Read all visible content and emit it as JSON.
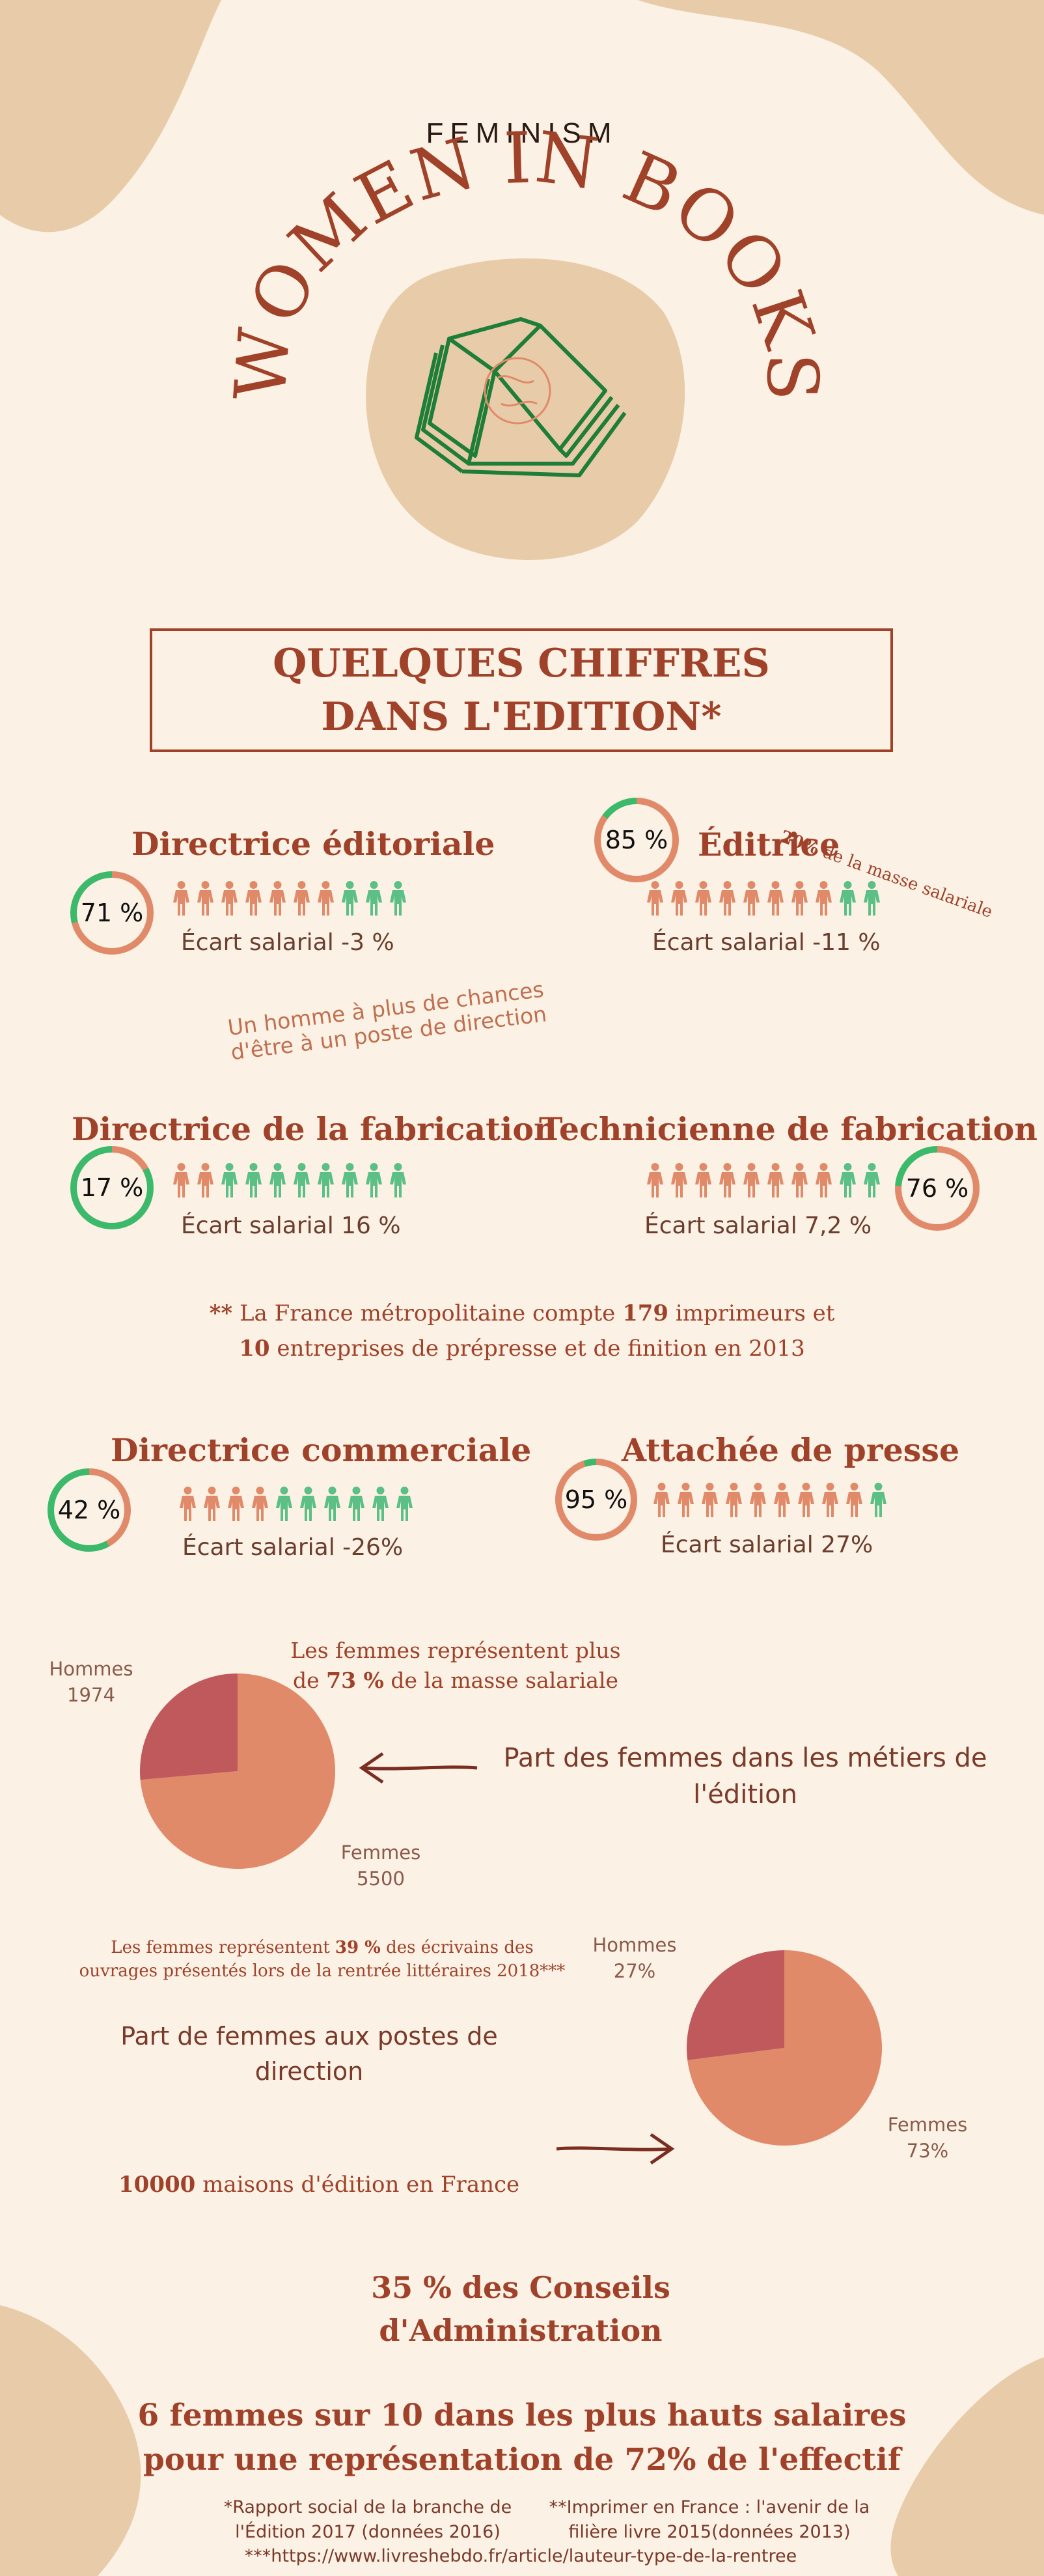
{
  "header": {
    "kicker": "FEMINISM",
    "title": "WOMEN IN BOOKS"
  },
  "section_title": "QUELQUES CHIFFRES DANS L'EDITION*",
  "colors": {
    "background": "#fbf1e4",
    "blob": "#e8cba9",
    "accent": "#a0422a",
    "salmon": "#e08a6a",
    "green": "#5bbf86",
    "ring_green": "#3cb96a",
    "pie_dark": "#c0595c",
    "pie_light": "#e08a6a",
    "book": "#1e7d37"
  },
  "icons": {
    "book": "open-book-icon",
    "person": "person-icon",
    "arrow": "arrow-icon"
  },
  "jobs": [
    {
      "title": "Directrice éditoriale",
      "percent_label": "71 %",
      "percent": 71,
      "gap": "Écart salarial -3 %",
      "women_of_10": 7
    },
    {
      "title": "Éditrice",
      "percent_label": "85 %",
      "percent": 85,
      "gap": "Écart salarial -11 %",
      "women_of_10": 8,
      "side_note_bold": "20%",
      "side_note": " de la masse salariale"
    },
    {
      "title": "Directrice de la fabrication",
      "percent_label": "17 %",
      "percent": 17,
      "gap": "Écart salarial 16 %",
      "women_of_10": 2
    },
    {
      "title": "Technicienne de fabrication",
      "percent_label": "76 %",
      "percent": 76,
      "gap": "Écart salarial 7,2 %",
      "women_of_10": 8
    },
    {
      "title": "Directrice commerciale",
      "percent_label": "42 %",
      "percent": 42,
      "gap": "Écart salarial -26%",
      "women_of_10": 4
    },
    {
      "title": "Attachée de presse",
      "percent_label": "95 %",
      "percent": 95,
      "gap": "Écart salarial 27%",
      "women_of_10": 9
    }
  ],
  "rotated_note": "Un homme à plus de chances d'être à un poste de direction",
  "imprint_note": {
    "stars": "**",
    "pre": " La France métropolitaine compte ",
    "n1": "179",
    "mid": " imprimeurs et ",
    "n2": "10",
    "post": " entreprises de prépresse et de finition en 2013"
  },
  "pie1": {
    "caption_pre": "Les femmes représentent plus de ",
    "caption_bold": "73 %",
    "caption_post": " de la masse salariale",
    "label": "Part des femmes dans les métiers de l'édition",
    "men_label": "Hommes",
    "men_value": "1974",
    "women_label": "Femmes",
    "women_value": "5500"
  },
  "pie2": {
    "caption_pre": "Les femmes représentent ",
    "caption_bold": "39 %",
    "caption_post": " des écrivains des ouvrages présentés lors de la rentrée littéraires 2018***",
    "label": "Part de femmes aux postes de direction",
    "men_label": "Hommes",
    "men_value": "27%",
    "women_label": "Femmes",
    "women_value": "73%"
  },
  "chart_data": [
    {
      "type": "pie",
      "categories": [
        "Hommes",
        "Femmes"
      ],
      "values": [
        1974,
        5500
      ]
    },
    {
      "type": "pie",
      "categories": [
        "Hommes",
        "Femmes"
      ],
      "values": [
        27,
        73
      ]
    }
  ],
  "publishers": {
    "bold": "10000",
    "text": " maisons d'édition en France"
  },
  "boards": "35 % des Conseils d'Administration",
  "salaries": "6 femmes sur 10 dans les plus hauts salaires pour une représentation de 72% de l'effectif",
  "footnotes": {
    "f1": "*Rapport social de la branche de l'Édition 2017 (données 2016)",
    "f2": "**Imprimer en France : l'avenir de la filière livre 2015(données 2013)",
    "f3": "***https://www.livreshebdo.fr/article/lauteur-type-de-la-rentree"
  }
}
